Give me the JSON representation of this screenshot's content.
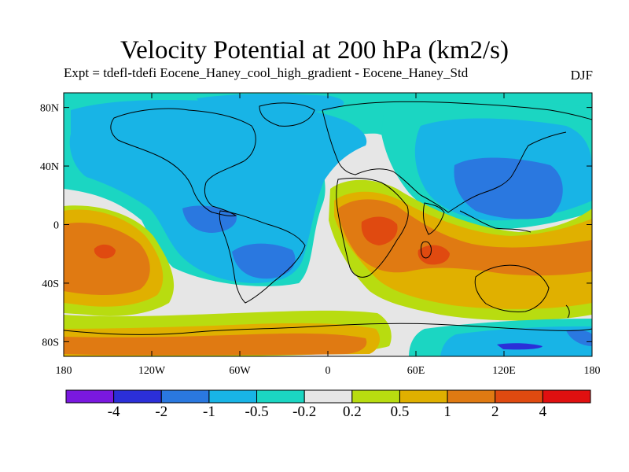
{
  "title": "Velocity Potential at 200 hPa (km2/s)",
  "subtitle": "Expt = tdefl-tdefi  Eocene_Haney_cool_high_gradient - Eocene_Haney_Std",
  "season": "DJF",
  "map": {
    "lat_ticks": [
      "80N",
      "40N",
      "0",
      "40S",
      "80S"
    ],
    "lon_ticks": [
      "180",
      "120W",
      "60W",
      "0",
      "60E",
      "120E",
      "180"
    ]
  },
  "colorbar": {
    "colors": [
      "#7a18e0",
      "#2b2fd8",
      "#2a78e0",
      "#18b4e6",
      "#1bd6c2",
      "#e6e6e6",
      "#b8dc10",
      "#e0b000",
      "#e07a12",
      "#e04a10",
      "#e01010"
    ],
    "labels": [
      "-4",
      "-2",
      "-1",
      "-0.5",
      "-0.2",
      "0.2",
      "0.5",
      "1",
      "2",
      "4"
    ]
  },
  "colors": {
    "neutral": "#e6e6e6",
    "cyan": "#1bd6c2",
    "lightblue": "#18b4e6",
    "blue": "#2a78e0",
    "deepblue": "#2b2fd8",
    "yellowgreen": "#b8dc10",
    "gold": "#e0b000",
    "orange": "#e07a12",
    "red": "#e04a10"
  }
}
